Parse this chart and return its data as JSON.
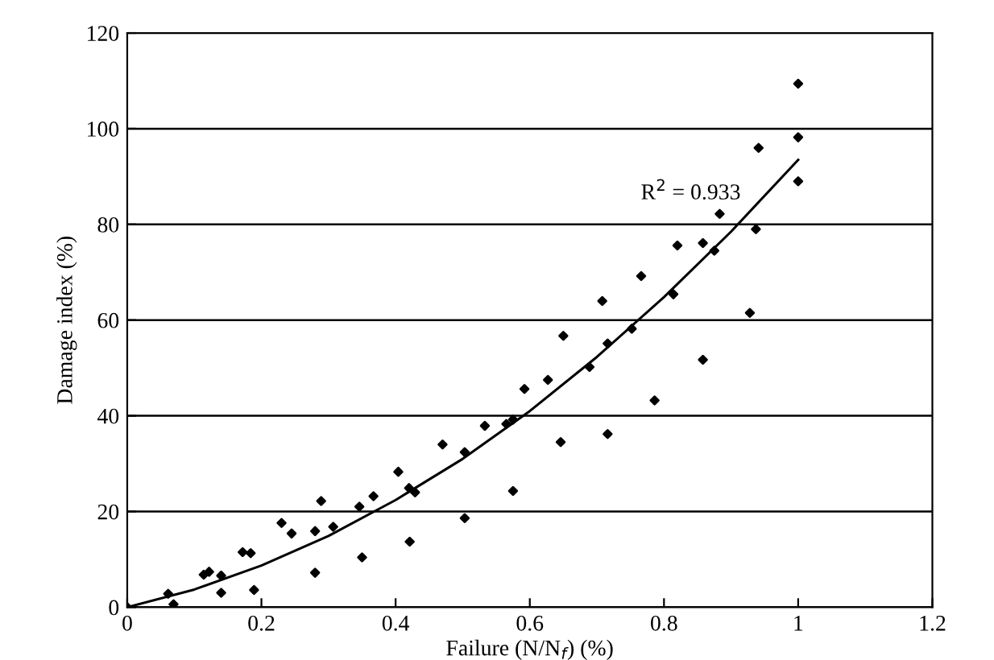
{
  "chart_data": {
    "type": "scatter",
    "xlabel": "Failure (N/N$_{f}$) (%)",
    "ylabel": "Damage index (%)",
    "xlim": [
      0,
      1.2
    ],
    "ylim": [
      0,
      120
    ],
    "xticks": [
      0,
      {
        "value": 0.2,
        "label": "0.2"
      },
      {
        "value": 0.4,
        "label": "0.4"
      },
      {
        "value": 0.6,
        "label": "0.6"
      },
      {
        "value": 0.8,
        "label": "0.8"
      },
      1,
      {
        "value": 1.2,
        "label": "1.2"
      }
    ],
    "yticks": [
      0,
      20,
      40,
      60,
      80,
      100,
      120
    ],
    "grid": "y",
    "legend": false,
    "marker": "diamond",
    "annotations": [
      "R$^{2}$ = 0.933"
    ],
    "series": [
      {
        "color": "#000000",
        "x": [
          0,
          0.061,
          0.069,
          0.114,
          0.122,
          0.14,
          0.14,
          0.172,
          0.184,
          0.189,
          0.23,
          0.245,
          0.28,
          0.289,
          0.28,
          0.307,
          0.35,
          0.346,
          0.367,
          0.404,
          0.42,
          0.429,
          0.421,
          0.47,
          0.503,
          0.503,
          0.533,
          0.565,
          0.575,
          0.575,
          0.592,
          0.627,
          0.646,
          0.65,
          0.689,
          0.708,
          0.716,
          0.716,
          0.752,
          0.766,
          0.786,
          0.814,
          0.82,
          0.858,
          0.875,
          0.883,
          0.858,
          0.928,
          0.937,
          0.941,
          1.0,
          1.0,
          1.0
        ],
        "values": [
          0,
          2.8,
          0.6,
          6.8,
          7.4,
          6.6,
          3.0,
          11.5,
          11.3,
          3.6,
          17.6,
          15.4,
          15.9,
          22.2,
          7.2,
          16.8,
          10.4,
          21.0,
          23.2,
          28.3,
          24.9,
          24.0,
          13.7,
          34,
          32.4,
          18.6,
          37.9,
          38.3,
          39.2,
          24.3,
          45.6,
          47.5,
          34.5,
          56.7,
          50.2,
          64.0,
          55.1,
          36.2,
          58.2,
          69.2,
          43.2,
          65.4,
          75.6,
          76.1,
          74.5,
          82.2,
          51.7,
          61.5,
          79.0,
          96.0,
          109.4,
          98.2,
          89.0
        ]
      },
      {
        "type": "line",
        "color": "#000000",
        "marker": "none",
        "x": [
          0,
          0.1,
          0.2,
          0.3,
          0.4,
          0.5,
          0.6,
          0.7,
          0.8,
          0.9,
          1.0
        ],
        "values": [
          0,
          3.7,
          8.7,
          14.9,
          22.4,
          31,
          41,
          52.3,
          64.8,
          78.5,
          93.5
        ]
      }
    ]
  }
}
